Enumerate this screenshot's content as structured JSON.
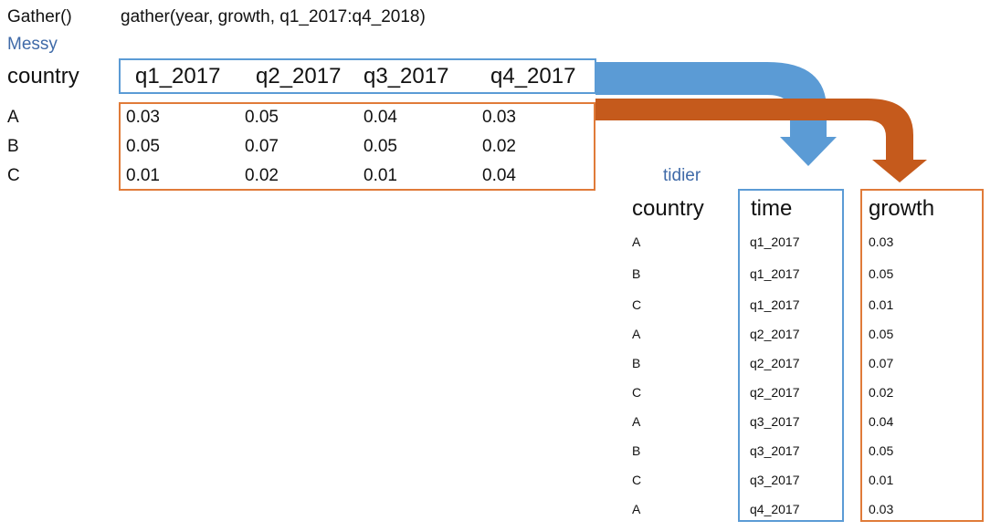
{
  "header": {
    "function_label": "Gather()",
    "code": "gather(year, growth, q1_2017:q4_2018)",
    "messy_label": "Messy"
  },
  "messy": {
    "country_header": "country",
    "columns": [
      "q1_2017",
      "q2_2017",
      "q3_2017",
      "q4_2017"
    ],
    "rows": [
      {
        "country": "A",
        "values": [
          "0.03",
          "0.05",
          "0.04",
          "0.03"
        ]
      },
      {
        "country": "B",
        "values": [
          "0.05",
          "0.07",
          "0.05",
          "0.02"
        ]
      },
      {
        "country": "C",
        "values": [
          "0.01",
          "0.02",
          "0.01",
          "0.04"
        ]
      }
    ]
  },
  "tidy": {
    "label": "tidier",
    "headers": {
      "country": "country",
      "time": "time",
      "growth": "growth"
    },
    "rows": [
      {
        "country": "A",
        "time": "q1_2017",
        "growth": "0.03"
      },
      {
        "country": "B",
        "time": "q1_2017",
        "growth": "0.05"
      },
      {
        "country": "C",
        "time": "q1_2017",
        "growth": "0.01"
      },
      {
        "country": "A",
        "time": "q2_2017",
        "growth": "0.05"
      },
      {
        "country": "B",
        "time": "q2_2017",
        "growth": "0.07"
      },
      {
        "country": "C",
        "time": "q2_2017",
        "growth": "0.02"
      },
      {
        "country": "A",
        "time": "q3_2017",
        "growth": "0.04"
      },
      {
        "country": "B",
        "time": "q3_2017",
        "growth": "0.05"
      },
      {
        "country": "C",
        "time": "q3_2017",
        "growth": "0.01"
      },
      {
        "country": "A",
        "time": "q4_2017",
        "growth": "0.03"
      }
    ]
  },
  "colors": {
    "blue_arrow": "#5b9bd5",
    "orange_arrow": "#c55a1c",
    "blue_border": "#5b9bd5",
    "orange_border": "#e07b39",
    "label_blue": "#3f6aa8"
  }
}
